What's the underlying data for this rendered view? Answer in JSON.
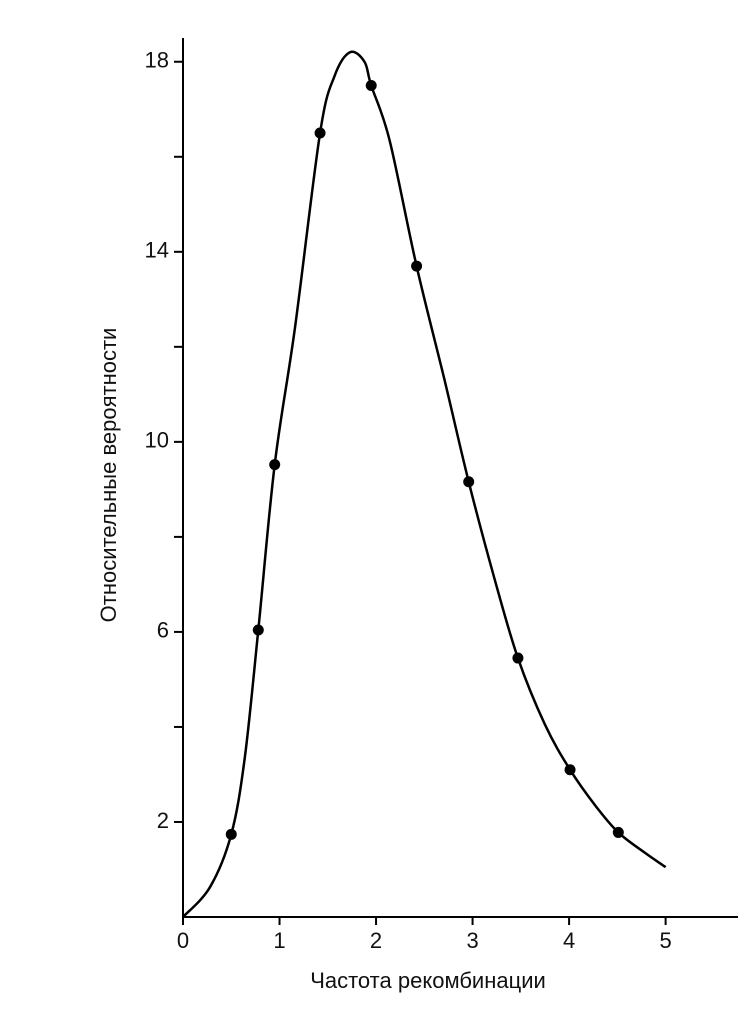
{
  "chart_data": {
    "type": "scatter",
    "xlabel": "Частота рекомбинации",
    "ylabel": "Относительные вероятности",
    "xlim": [
      0,
      5.75
    ],
    "ylim": [
      0,
      18.5
    ],
    "xticks": [
      0,
      1,
      2,
      3,
      4,
      5
    ],
    "yticks": [
      2,
      6,
      10,
      14,
      18
    ],
    "yminor_ticks": [
      4,
      8,
      12,
      16
    ],
    "color": "#000000",
    "points": {
      "x": [
        0.5,
        0.78,
        0.95,
        1.42,
        1.95,
        2.42,
        2.96,
        3.47,
        4.01,
        4.51
      ],
      "y": [
        1.74,
        6.04,
        9.52,
        16.5,
        17.5,
        13.7,
        9.16,
        5.45,
        3.1,
        1.78
      ]
    },
    "curve": {
      "x": [
        0,
        0.28,
        0.5,
        0.64,
        0.78,
        0.95,
        1.16,
        1.42,
        1.57,
        1.73,
        1.88,
        1.95,
        2.14,
        2.42,
        2.71,
        2.96,
        3.23,
        3.47,
        3.75,
        4.01,
        4.27,
        4.51,
        4.78,
        5.0
      ],
      "y": [
        0,
        0.63,
        1.74,
        3.35,
        6.04,
        9.52,
        12.4,
        16.5,
        17.7,
        18.2,
        18.0,
        17.5,
        16.35,
        13.7,
        11.3,
        9.16,
        7.1,
        5.45,
        4.05,
        3.1,
        2.35,
        1.78,
        1.36,
        1.05
      ]
    }
  }
}
